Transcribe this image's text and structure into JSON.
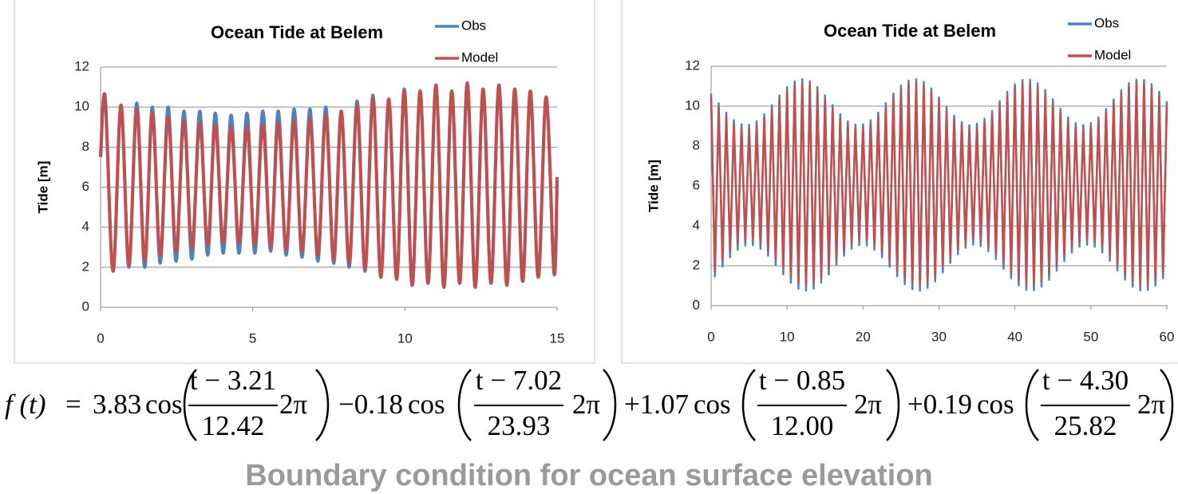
{
  "chart_data": [
    {
      "type": "line",
      "title": "Ocean Tide at Belem",
      "ylabel": "Tide [m]",
      "smooth": true,
      "grid": true,
      "legend": "upper right",
      "xlim": [
        0,
        15
      ],
      "xticks": [
        0,
        5,
        10,
        15
      ],
      "ylim": [
        0,
        12
      ],
      "yticks": [
        0,
        2,
        4,
        6,
        8,
        10,
        12
      ],
      "x": [
        0,
        0.15,
        0.41,
        0.67,
        0.93,
        1.19,
        1.45,
        1.7,
        1.96,
        2.22,
        2.48,
        2.74,
        3.0,
        3.26,
        3.52,
        3.77,
        4.03,
        4.29,
        4.55,
        4.81,
        5.07,
        5.33,
        5.59,
        5.84,
        6.1,
        6.36,
        6.62,
        6.88,
        7.14,
        7.4,
        7.66,
        7.91,
        8.17,
        8.43,
        8.69,
        8.95,
        9.21,
        9.47,
        9.73,
        9.98,
        10.24,
        10.5,
        10.76,
        11.02,
        11.28,
        11.54,
        11.8,
        12.05,
        12.31,
        12.57,
        12.83,
        13.09,
        13.35,
        13.61,
        13.87,
        14.12,
        14.38,
        14.64,
        14.9,
        15
      ],
      "series": [
        {
          "name": "Obs",
          "color": "#4f81bd",
          "values": [
            7.5,
            10.5,
            1.8,
            10.1,
            2.0,
            10.2,
            2.0,
            10.0,
            2.2,
            10.0,
            2.3,
            9.8,
            2.4,
            9.8,
            2.6,
            9.7,
            2.7,
            9.6,
            2.7,
            9.7,
            2.7,
            9.8,
            2.8,
            9.8,
            2.6,
            9.9,
            2.5,
            9.9,
            2.3,
            10.0,
            2.2,
            9.7,
            2.0,
            10.3,
            1.8,
            10.6,
            1.5,
            10.4,
            1.4,
            10.9,
            1.1,
            10.8,
            1.2,
            11.1,
            1.0,
            10.8,
            1.2,
            11.2,
            1.0,
            10.9,
            1.2,
            11.1,
            1.1,
            10.9,
            1.3,
            10.8,
            1.5,
            10.5,
            1.7,
            6.2
          ]
        },
        {
          "name": "Model",
          "color": "#c0504d",
          "values": [
            7.5,
            10.5,
            1.8,
            10.1,
            2.1,
            9.9,
            2.3,
            9.7,
            2.6,
            9.5,
            2.8,
            9.3,
            3.0,
            9.2,
            3.1,
            9.1,
            3.2,
            9.0,
            3.2,
            9.0,
            3.1,
            9.1,
            3.0,
            9.2,
            2.9,
            9.3,
            2.8,
            9.4,
            2.6,
            9.6,
            2.4,
            9.8,
            2.2,
            10.1,
            1.9,
            10.4,
            1.5,
            10.4,
            1.4,
            10.8,
            1.1,
            10.8,
            1.2,
            11.1,
            1.0,
            10.8,
            1.2,
            11.2,
            1.0,
            10.9,
            1.2,
            11.1,
            1.1,
            10.9,
            1.3,
            10.8,
            1.5,
            10.5,
            1.7,
            6.5
          ]
        }
      ]
    },
    {
      "type": "line",
      "title": "Ocean Tide at Belem",
      "ylabel": "Tide [m]",
      "smooth": false,
      "grid": true,
      "legend": "upper right",
      "xlim": [
        0,
        60
      ],
      "xticks": [
        0,
        10,
        20,
        30,
        40,
        50,
        60
      ],
      "ylim": [
        0,
        12
      ],
      "yticks": [
        0,
        2,
        4,
        6,
        8,
        10,
        12
      ],
      "x": [
        0,
        0.5,
        1,
        1.5,
        2,
        2.5,
        3,
        3.5,
        4,
        4.5,
        5,
        5.5,
        6,
        6.5,
        7,
        7.5,
        8,
        8.5,
        9,
        9.5,
        10,
        10.5,
        11,
        11.5,
        12,
        12.5,
        13,
        13.5,
        14,
        14.5,
        15,
        15.5,
        16,
        16.5,
        17,
        17.5,
        18,
        18.5,
        19,
        19.5,
        20,
        20.5,
        21,
        21.5,
        22,
        22.5,
        23,
        23.5,
        24,
        24.5,
        25,
        25.5,
        26,
        26.5,
        27,
        27.5,
        28,
        28.5,
        29,
        29.5,
        30,
        30.5,
        31,
        31.5,
        32,
        32.5,
        33,
        33.5,
        34,
        34.5,
        35,
        35.5,
        36,
        36.5,
        37,
        37.5,
        38,
        38.5,
        39,
        39.5,
        40,
        40.5,
        41,
        41.5,
        42,
        42.5,
        43,
        43.5,
        44,
        44.5,
        45,
        45.5,
        46,
        46.5,
        47,
        47.5,
        48,
        48.5,
        49,
        49.5,
        50,
        50.5,
        51,
        51.5,
        52,
        52.5,
        53,
        53.5,
        54,
        54.5,
        55,
        55.5,
        56,
        56.5,
        57,
        57.5,
        58,
        58.5,
        59,
        59.5,
        60
      ],
      "series": [
        {
          "name": "Obs",
          "color": "#4f81bd",
          "values": [
            10.63,
            1.47,
            10.15,
            1.95,
            9.68,
            2.42,
            9.3,
            2.8,
            9.09,
            3.01,
            9.07,
            3.03,
            9.25,
            2.85,
            9.6,
            2.5,
            10.05,
            2.05,
            10.54,
            1.56,
            10.96,
            1.14,
            11.25,
            0.85,
            11.35,
            0.75,
            11.25,
            0.85,
            10.96,
            1.14,
            10.54,
            1.56,
            10.05,
            2.05,
            9.6,
            2.5,
            9.25,
            2.85,
            9.07,
            3.03,
            9.09,
            3.01,
            9.3,
            2.8,
            9.68,
            2.42,
            10.15,
            1.95,
            10.63,
            1.47,
            11.03,
            1.07,
            11.28,
            0.82,
            11.35,
            0.75,
            11.21,
            0.89,
            10.89,
            1.21,
            10.44,
            1.66,
            9.96,
            2.14,
            9.52,
            2.58,
            9.2,
            2.9,
            9.05,
            3.05,
            9.12,
            2.98,
            9.37,
            2.73,
            9.77,
            2.33,
            10.25,
            1.85,
            10.72,
            1.38,
            11.09,
            1.01,
            11.31,
            0.79,
            11.33,
            0.77,
            11.15,
            0.95,
            10.81,
            1.29,
            10.35,
            1.75,
            9.87,
            2.23,
            9.44,
            2.66,
            9.15,
            2.95,
            9.05,
            3.05,
            9.15,
            2.95,
            9.44,
            2.66,
            9.86,
            2.24,
            10.34,
            1.76,
            10.8,
            1.3,
            11.15,
            0.95,
            11.33,
            0.77,
            11.31,
            0.79,
            11.1,
            1.0,
            10.72,
            1.38,
            10.25
          ]
        },
        {
          "name": "Model",
          "color": "#c0504d",
          "values": [
            10.43,
            1.77,
            9.95,
            2.25,
            9.48,
            2.72,
            9.1,
            3.1,
            8.89,
            3.31,
            8.87,
            3.33,
            9.05,
            3.15,
            9.4,
            2.8,
            9.85,
            2.35,
            10.34,
            1.86,
            10.76,
            1.44,
            11.05,
            1.15,
            11.15,
            1.05,
            11.05,
            1.15,
            10.76,
            1.44,
            10.34,
            1.86,
            9.85,
            2.35,
            9.4,
            2.8,
            9.05,
            3.15,
            8.87,
            3.33,
            8.89,
            3.31,
            9.1,
            3.1,
            9.48,
            2.72,
            9.95,
            2.25,
            10.43,
            1.77,
            10.83,
            1.37,
            11.08,
            1.12,
            11.15,
            1.05,
            11.01,
            1.19,
            10.69,
            1.51,
            10.24,
            1.96,
            9.76,
            2.44,
            9.32,
            2.88,
            9.0,
            3.2,
            8.85,
            3.35,
            8.92,
            3.28,
            9.17,
            3.03,
            9.57,
            2.63,
            10.05,
            2.15,
            10.52,
            1.68,
            10.89,
            1.31,
            11.11,
            1.09,
            11.13,
            1.07,
            10.95,
            1.25,
            10.61,
            1.59,
            10.15,
            2.05,
            9.67,
            2.53,
            9.24,
            2.96,
            8.95,
            3.25,
            8.85,
            3.35,
            8.95,
            3.25,
            9.24,
            2.96,
            9.66,
            2.54,
            10.14,
            2.06,
            10.6,
            1.6,
            10.95,
            1.25,
            11.13,
            1.07,
            11.11,
            1.09,
            10.9,
            1.3,
            10.52,
            1.68,
            10.05
          ]
        }
      ]
    }
  ],
  "equation": {
    "function": "f (t)",
    "equals": "=",
    "terms": [
      {
        "coef": "3.83",
        "func": "cos",
        "numerator": "t − 3.21",
        "denominator": "12.42",
        "factor": "2π"
      },
      {
        "coef": "−0.18",
        "func": "cos",
        "numerator": "t − 7.02",
        "denominator": "23.93",
        "factor": "2π"
      },
      {
        "coef": "+1.07",
        "func": "cos",
        "numerator": "t − 0.85",
        "denominator": "12.00",
        "factor": "2π"
      },
      {
        "coef": "+0.19",
        "func": "cos",
        "numerator": "t − 4.30",
        "denominator": "25.82",
        "factor": "2π"
      }
    ]
  },
  "caption": "Boundary condition for ocean surface elevation"
}
